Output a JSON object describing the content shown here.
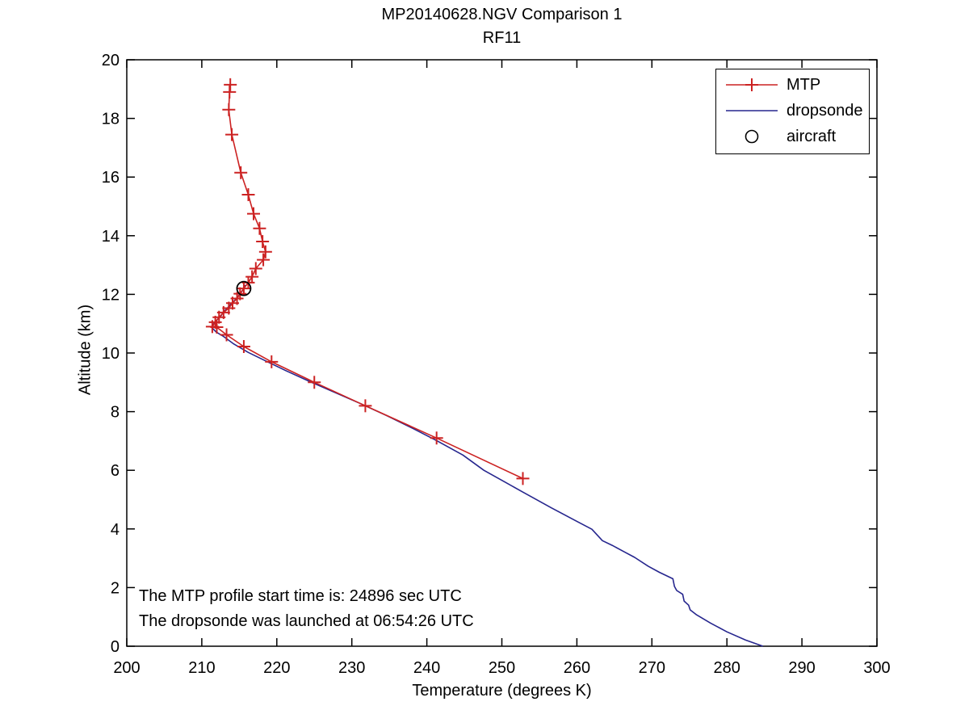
{
  "chart_data": {
    "type": "line",
    "title": "MP20140628.NGV Comparison 1",
    "subtitle": "RF11",
    "xlabel": "Temperature (degrees K)",
    "ylabel": "Altitude (km)",
    "xlim": [
      200,
      300
    ],
    "ylim": [
      0,
      20
    ],
    "xticks": [
      200,
      210,
      220,
      230,
      240,
      250,
      260,
      270,
      280,
      290,
      300
    ],
    "yticks": [
      0,
      2,
      4,
      6,
      8,
      10,
      12,
      14,
      16,
      18,
      20
    ],
    "grid": false,
    "frame_color": "#000000",
    "background_color": "#ffffff",
    "legend": {
      "position": "top-right",
      "entries": [
        {
          "label": "MTP",
          "style": "line-with-plus-marker",
          "color": "#cc2222"
        },
        {
          "label": "dropsonde",
          "style": "line",
          "color": "#26268e"
        },
        {
          "label": "aircraft",
          "style": "open-circle",
          "color": "#000000"
        }
      ]
    },
    "annotations": [
      "The MTP profile start time is: 24896 sec UTC",
      "The dropsonde was launched at 06:54:26 UTC"
    ],
    "series": [
      {
        "name": "MTP",
        "color": "#cc2222",
        "marker": "plus",
        "line": true,
        "z": 2,
        "points": [
          [
            213.8,
            19.15
          ],
          [
            213.7,
            18.9
          ],
          [
            213.6,
            18.3
          ],
          [
            214.0,
            17.45
          ],
          [
            215.2,
            16.15
          ],
          [
            216.2,
            15.4
          ],
          [
            216.9,
            14.75
          ],
          [
            217.7,
            14.25
          ],
          [
            218.1,
            13.8
          ],
          [
            218.5,
            13.45
          ],
          [
            218.2,
            13.18
          ],
          [
            217.2,
            12.88
          ],
          [
            216.7,
            12.6
          ],
          [
            216.2,
            12.4
          ],
          [
            215.6,
            12.2
          ],
          [
            215.1,
            12.02
          ],
          [
            214.7,
            11.86
          ],
          [
            214.1,
            11.7
          ],
          [
            213.6,
            11.53
          ],
          [
            212.9,
            11.38
          ],
          [
            212.3,
            11.22
          ],
          [
            211.8,
            11.05
          ],
          [
            211.4,
            10.9
          ],
          [
            212.0,
            10.88
          ],
          [
            213.3,
            10.62
          ],
          [
            215.6,
            10.22
          ],
          [
            219.3,
            9.7
          ],
          [
            225.0,
            9.0
          ],
          [
            231.8,
            8.2
          ],
          [
            241.3,
            7.1
          ],
          [
            252.8,
            5.72
          ]
        ]
      },
      {
        "name": "dropsonde",
        "color": "#26268e",
        "marker": null,
        "line": true,
        "z": 1,
        "points": [
          [
            215.8,
            12.32
          ],
          [
            215.4,
            12.12
          ],
          [
            214.9,
            11.95
          ],
          [
            214.4,
            11.8
          ],
          [
            213.7,
            11.62
          ],
          [
            213.3,
            11.5
          ],
          [
            212.8,
            11.38
          ],
          [
            212.6,
            11.28
          ],
          [
            212.0,
            11.12
          ],
          [
            211.6,
            11.0
          ],
          [
            211.3,
            10.88
          ],
          [
            211.9,
            10.72
          ],
          [
            212.8,
            10.58
          ],
          [
            214.2,
            10.32
          ],
          [
            216.2,
            10.02
          ],
          [
            218.6,
            9.72
          ],
          [
            221.2,
            9.4
          ],
          [
            224.2,
            9.05
          ],
          [
            227.6,
            8.67
          ],
          [
            231.2,
            8.27
          ],
          [
            234.6,
            7.87
          ],
          [
            238.2,
            7.42
          ],
          [
            241.4,
            7.0
          ],
          [
            244.8,
            6.52
          ],
          [
            247.6,
            6.0
          ],
          [
            250.4,
            5.6
          ],
          [
            252.7,
            5.27
          ],
          [
            256.6,
            4.72
          ],
          [
            260.0,
            4.26
          ],
          [
            262.0,
            3.99
          ],
          [
            262.9,
            3.74
          ],
          [
            263.4,
            3.6
          ],
          [
            264.7,
            3.44
          ],
          [
            266.3,
            3.22
          ],
          [
            267.7,
            3.03
          ],
          [
            269.5,
            2.73
          ],
          [
            271.0,
            2.52
          ],
          [
            272.8,
            2.3
          ],
          [
            273.0,
            2.04
          ],
          [
            273.3,
            1.9
          ],
          [
            274.1,
            1.77
          ],
          [
            274.3,
            1.54
          ],
          [
            274.9,
            1.4
          ],
          [
            275.1,
            1.24
          ],
          [
            275.9,
            1.08
          ],
          [
            277.8,
            0.79
          ],
          [
            280.0,
            0.49
          ],
          [
            282.5,
            0.21
          ],
          [
            284.8,
            0.0
          ]
        ]
      },
      {
        "name": "aircraft",
        "color": "#000000",
        "marker": "circle",
        "line": false,
        "z": 3,
        "points": [
          [
            215.6,
            12.2
          ]
        ]
      }
    ]
  }
}
